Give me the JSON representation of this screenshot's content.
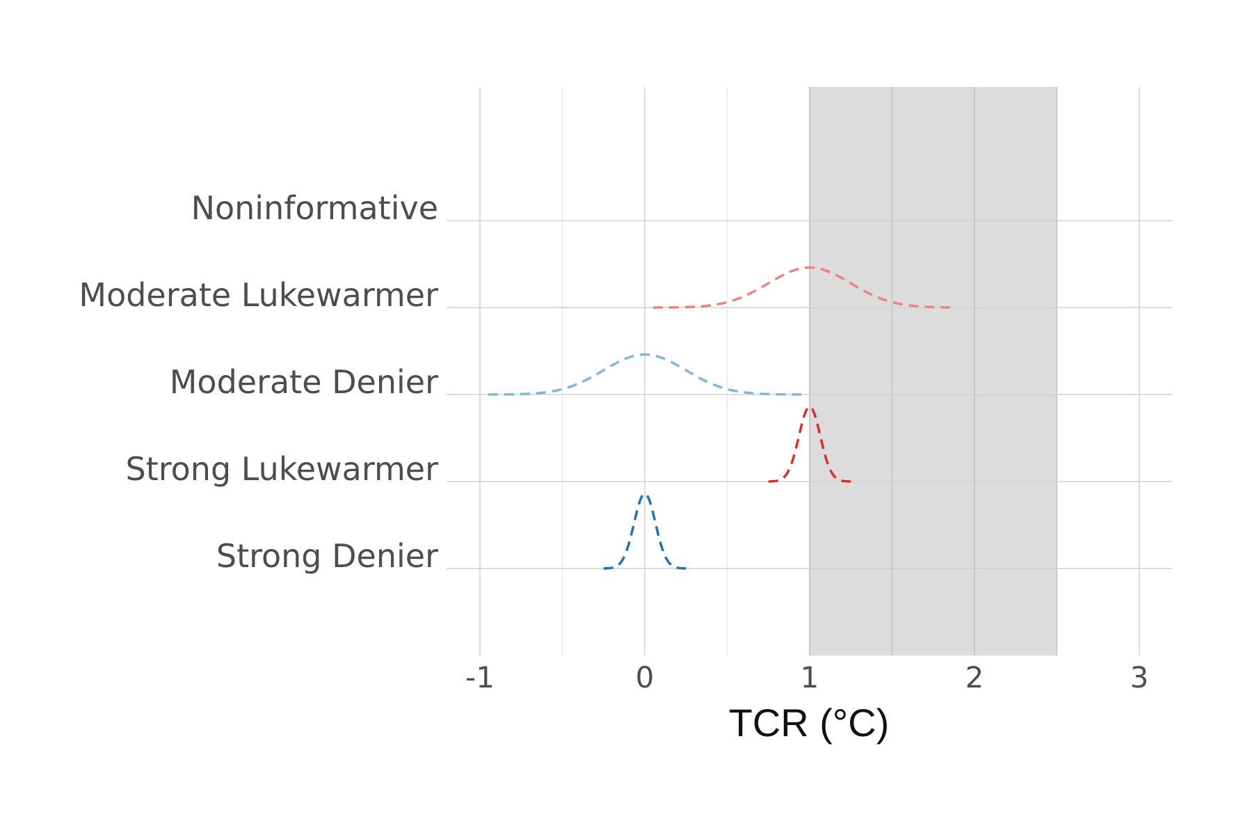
{
  "chart_data": {
    "type": "ridgeline",
    "xlabel": "TCR (°C)",
    "xlim": [
      -1.2,
      3.2
    ],
    "x_ticks": [
      -1,
      0,
      1,
      2,
      3
    ],
    "x_tick_labels": [
      "-1",
      "0",
      "1",
      "2",
      "3"
    ],
    "x_minor": [
      -0.5,
      0.5,
      1.5,
      2.5
    ],
    "categories": [
      "Strong Denier",
      "Strong Lukewarmer",
      "Moderate Denier",
      "Moderate Lukewarmer",
      "Noninformative"
    ],
    "shaded_region": {
      "x": [
        1,
        2.5
      ],
      "color": "#dcdcdc"
    },
    "grid": true,
    "legend": "none",
    "series": [
      {
        "category": "Strong Denier",
        "mean": 0,
        "sd": 0.065,
        "xrange": [
          -0.25,
          0.25
        ],
        "peak_height": 0.86,
        "color": "#2171b5"
      },
      {
        "category": "Strong Lukewarmer",
        "mean": 1,
        "sd": 0.065,
        "xrange": [
          0.75,
          1.25
        ],
        "peak_height": 0.86,
        "color": "#de2d26"
      },
      {
        "category": "Moderate Denier",
        "mean": 0,
        "sd": 0.25,
        "xrange": [
          -0.95,
          0.95
        ],
        "peak_height": 0.46,
        "color": "#7fb7d9"
      },
      {
        "category": "Moderate Lukewarmer",
        "mean": 1,
        "sd": 0.25,
        "xrange": [
          0.05,
          1.85
        ],
        "peak_height": 0.46,
        "color": "#f08080"
      }
    ]
  }
}
